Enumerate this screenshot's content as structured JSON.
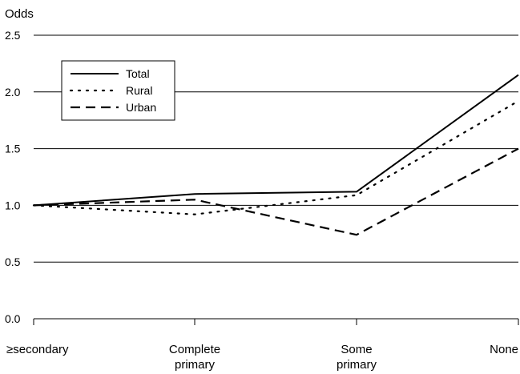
{
  "chart_data": {
    "type": "line",
    "ylabel": "Odds",
    "categories": [
      "≥secondary",
      "Complete primary",
      "Some primary",
      "None"
    ],
    "category_labels": [
      [
        "≥secondary"
      ],
      [
        "Complete",
        "primary"
      ],
      [
        "Some",
        "primary"
      ],
      [
        "None"
      ]
    ],
    "ylim": [
      0,
      2.5
    ],
    "yticks": [
      0.0,
      0.5,
      1.0,
      1.5,
      2.0,
      2.5
    ],
    "ytick_labels": [
      "0.0",
      "0.5",
      "1.0",
      "1.5",
      "2.0",
      "2.5"
    ],
    "grid": true,
    "legend_position": "top-left",
    "series": [
      {
        "name": "Total",
        "style": "solid",
        "values": [
          1.0,
          1.1,
          1.12,
          2.15
        ]
      },
      {
        "name": "Rural",
        "style": "dotted",
        "values": [
          1.0,
          0.92,
          1.09,
          1.92
        ]
      },
      {
        "name": "Urban",
        "style": "dashed",
        "values": [
          1.0,
          1.05,
          0.74,
          1.5
        ]
      }
    ],
    "colors": {
      "line": "#000000",
      "grid": "#000000",
      "background": "#ffffff"
    }
  }
}
